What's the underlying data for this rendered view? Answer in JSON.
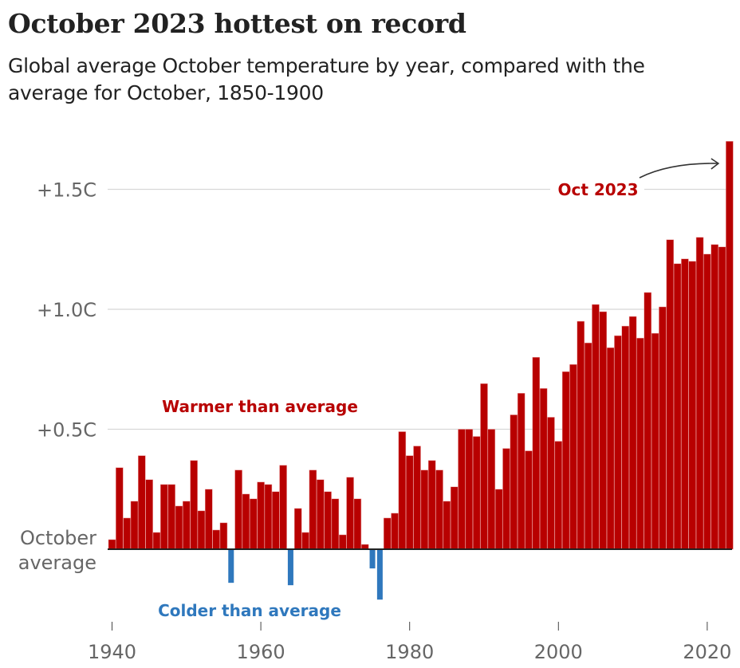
{
  "header": {
    "title": "October 2023 hottest on record",
    "subtitle": "Global average October temperature by year, compared with the average for October, 1850-1900"
  },
  "colors": {
    "warm": "#b80000",
    "cold": "#2f78bd",
    "gridline": "#d8d8d8",
    "baseline": "#222222",
    "axis_text": "#666666"
  },
  "chart_data": {
    "type": "bar",
    "title": "October 2023 hottest on record",
    "subtitle": "Global average October temperature by year, compared with the average for October, 1850-1900",
    "xlabel": "",
    "ylabel": "",
    "unit": "C",
    "ylim": [
      -0.3,
      1.75
    ],
    "xlim": [
      1940,
      2023
    ],
    "grid": true,
    "yticks": [
      {
        "value": 0,
        "label_lines": [
          "October",
          "average"
        ]
      },
      {
        "value": 0.5,
        "label": "+0.5C"
      },
      {
        "value": 1.0,
        "label": "+1.0C"
      },
      {
        "value": 1.5,
        "label": "+1.5C"
      }
    ],
    "xticks": [
      {
        "value": 1940,
        "label": "1940"
      },
      {
        "value": 1960,
        "label": "1960"
      },
      {
        "value": 1980,
        "label": "1980"
      },
      {
        "value": 2000,
        "label": "2000"
      },
      {
        "value": 2020,
        "label": "2020"
      }
    ],
    "years": [
      1940,
      1941,
      1942,
      1943,
      1944,
      1945,
      1946,
      1947,
      1948,
      1949,
      1950,
      1951,
      1952,
      1953,
      1954,
      1955,
      1956,
      1957,
      1958,
      1959,
      1960,
      1961,
      1962,
      1963,
      1964,
      1965,
      1966,
      1967,
      1968,
      1969,
      1970,
      1971,
      1972,
      1973,
      1974,
      1975,
      1976,
      1977,
      1978,
      1979,
      1980,
      1981,
      1982,
      1983,
      1984,
      1985,
      1986,
      1987,
      1988,
      1989,
      1990,
      1991,
      1992,
      1993,
      1994,
      1995,
      1996,
      1997,
      1998,
      1999,
      2000,
      2001,
      2002,
      2003,
      2004,
      2005,
      2006,
      2007,
      2008,
      2009,
      2010,
      2011,
      2012,
      2013,
      2014,
      2015,
      2016,
      2017,
      2018,
      2019,
      2020,
      2021,
      2022,
      2023
    ],
    "values": [
      0.04,
      0.34,
      0.13,
      0.2,
      0.39,
      0.29,
      0.07,
      0.27,
      0.27,
      0.18,
      0.2,
      0.37,
      0.16,
      0.25,
      0.08,
      0.11,
      -0.14,
      0.33,
      0.23,
      0.21,
      0.28,
      0.27,
      0.24,
      0.35,
      -0.15,
      0.17,
      0.07,
      0.33,
      0.29,
      0.24,
      0.21,
      0.06,
      0.3,
      0.21,
      0.02,
      -0.08,
      -0.21,
      0.13,
      0.15,
      0.49,
      0.39,
      0.43,
      0.33,
      0.37,
      0.33,
      0.2,
      0.26,
      0.5,
      0.5,
      0.47,
      0.69,
      0.5,
      0.25,
      0.42,
      0.56,
      0.65,
      0.41,
      0.8,
      0.67,
      0.55,
      0.45,
      0.74,
      0.77,
      0.95,
      0.86,
      1.02,
      0.99,
      0.84,
      0.89,
      0.93,
      0.97,
      0.88,
      1.07,
      0.9,
      1.01,
      1.29,
      1.19,
      1.21,
      1.2,
      1.3,
      1.23,
      1.27,
      1.26,
      1.7
    ],
    "annotations": [
      {
        "text": "Oct 2023",
        "target_year": 2023,
        "color": "warm",
        "arrow": true
      },
      {
        "text": "Warmer than average",
        "color": "warm"
      },
      {
        "text": "Colder than average",
        "color": "cold"
      }
    ]
  }
}
